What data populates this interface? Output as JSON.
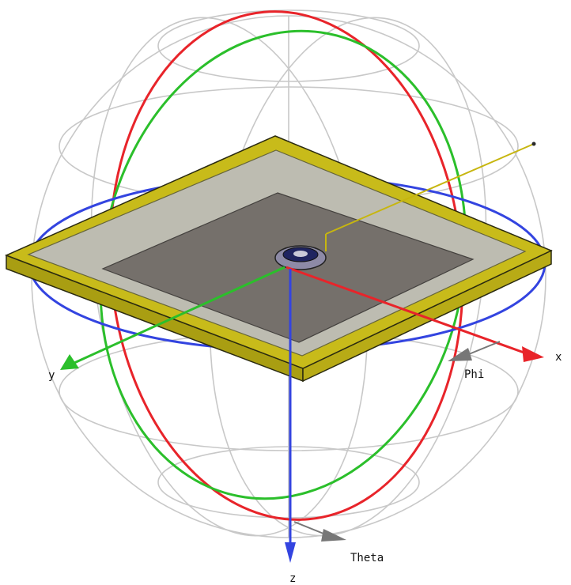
{
  "axes": {
    "x": {
      "label": "x",
      "color": "#e8242a"
    },
    "y": {
      "label": "y",
      "color": "#2bbf2b"
    },
    "z": {
      "label": "z",
      "color": "#3344e0"
    }
  },
  "angles": {
    "phi": {
      "label": "Phi",
      "color": "#777777"
    },
    "theta": {
      "label": "Theta",
      "color": "#777777"
    }
  },
  "colors": {
    "sphere_grid": "#c8c8c8",
    "board_frame": "#c8bb1a",
    "board_face": "#bdbdbd",
    "patch": "#6f6a66",
    "feed_line": "#c7b60f"
  }
}
